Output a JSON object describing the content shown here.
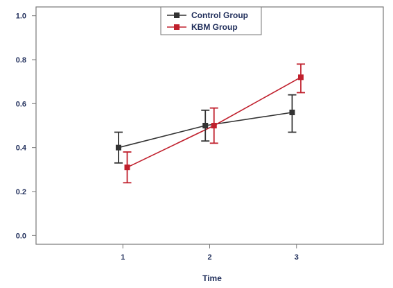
{
  "chart_data": {
    "type": "line",
    "x": [
      1,
      2,
      3
    ],
    "xlabel": "Time",
    "ylabel": "",
    "xlim": [
      0,
      4
    ],
    "ylim": [
      -0.04,
      1.04
    ],
    "x_ticks": [
      "1",
      "2",
      "3"
    ],
    "y_ticks": [
      "0.0",
      "0.2",
      "0.4",
      "0.6",
      "0.8",
      "1.0"
    ],
    "y_tick_values": [
      0.0,
      0.2,
      0.4,
      0.6,
      0.8,
      1.0
    ],
    "legend_position": "top-center",
    "series": [
      {
        "name": "Control Group",
        "color": "#333333",
        "values": [
          0.4,
          0.5,
          0.56
        ],
        "error_low": [
          0.33,
          0.43,
          0.47
        ],
        "error_high": [
          0.47,
          0.57,
          0.64
        ]
      },
      {
        "name": "KBM Group",
        "color": "#c0202d",
        "values": [
          0.31,
          0.5,
          0.72
        ],
        "error_low": [
          0.24,
          0.42,
          0.65
        ],
        "error_high": [
          0.38,
          0.58,
          0.78
        ]
      }
    ]
  }
}
